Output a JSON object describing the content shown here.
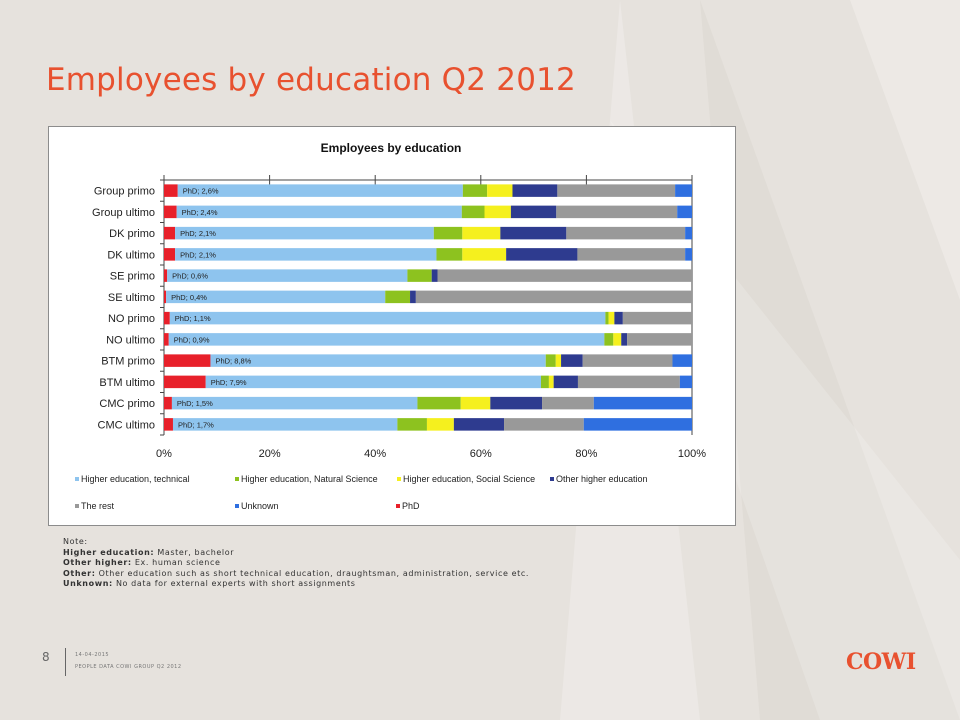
{
  "slide": {
    "title": "Employees by education Q2 2012",
    "page_number": "8",
    "footer_date": "14-04-2015",
    "footer_subtitle": "PEOPLE DATA COWI GROUP Q2 2012",
    "logo_text": "COWI"
  },
  "notes": {
    "heading": "Note:",
    "lines": [
      {
        "label": "Higher education:",
        "text": "Master, bachelor"
      },
      {
        "label": "Other higher:",
        "text": "Ex. human science"
      },
      {
        "label": "Other:",
        "text": "Other education such as short technical education, draughtsman, administration, service etc."
      },
      {
        "label": "Unknown:",
        "text": "No data for external experts with short assignments"
      }
    ]
  },
  "chart_data": {
    "type": "bar",
    "orientation": "horizontal",
    "stacked": "percent",
    "title": "Employees by education",
    "xlim": [
      0,
      100
    ],
    "xticks": [
      "0%",
      "20%",
      "40%",
      "60%",
      "80%",
      "100%"
    ],
    "legend_position": "bottom",
    "categories": [
      "Group primo",
      "Group ultimo",
      "DK primo",
      "DK ultimo",
      "SE primo",
      "SE ultimo",
      "NO primo",
      "NO ultimo",
      "BTM primo",
      "BTM ultimo",
      "CMC primo",
      "CMC ultimo"
    ],
    "data_labels": [
      "PhD; 2,6%",
      "PhD; 2,4%",
      "PhD; 2,1%",
      "PhD; 2,1%",
      "PhD; 0,6%",
      "PhD; 0,4%",
      "PhD; 1,1%",
      "PhD; 0,9%",
      "PhD; 8,8%",
      "PhD; 7,9%",
      "PhD; 1,5%",
      "PhD; 1,7%"
    ],
    "series": [
      {
        "name": "PhD",
        "color": "#e8202a",
        "values": [
          2.6,
          2.4,
          2.1,
          2.1,
          0.6,
          0.4,
          1.1,
          0.9,
          8.8,
          7.9,
          1.5,
          1.7
        ]
      },
      {
        "name": "Higher education, technical",
        "color": "#8ec4ee",
        "values": [
          54.0,
          54.0,
          49.0,
          49.5,
          45.5,
          41.5,
          82.5,
          82.5,
          63.5,
          63.5,
          46.5,
          42.5
        ]
      },
      {
        "name": "Higher education, Natural Science",
        "color": "#8dc21f",
        "values": [
          4.6,
          4.3,
          5.4,
          4.9,
          4.6,
          4.7,
          0.6,
          1.7,
          1.9,
          1.5,
          8.2,
          5.6
        ]
      },
      {
        "name": "Higher education, Social Science",
        "color": "#f5f01e",
        "values": [
          4.8,
          5.0,
          7.2,
          8.3,
          0.0,
          0.0,
          1.1,
          1.5,
          1.0,
          0.9,
          5.6,
          5.1
        ]
      },
      {
        "name": "Other higher education",
        "color": "#2e3b8f",
        "values": [
          8.5,
          8.6,
          12.5,
          13.5,
          1.1,
          1.1,
          1.6,
          1.1,
          4.1,
          4.6,
          9.8,
          9.5
        ]
      },
      {
        "name": "The rest",
        "color": "#999999",
        "values": [
          22.3,
          22.9,
          22.5,
          20.4,
          48.2,
          52.3,
          13.1,
          12.3,
          17.0,
          19.3,
          9.8,
          15.1
        ]
      },
      {
        "name": "Unknown",
        "color": "#2f6fe0",
        "values": [
          3.2,
          2.8,
          1.3,
          1.3,
          0.0,
          0.0,
          0.0,
          0.0,
          3.7,
          2.3,
          18.6,
          20.5
        ]
      }
    ]
  }
}
